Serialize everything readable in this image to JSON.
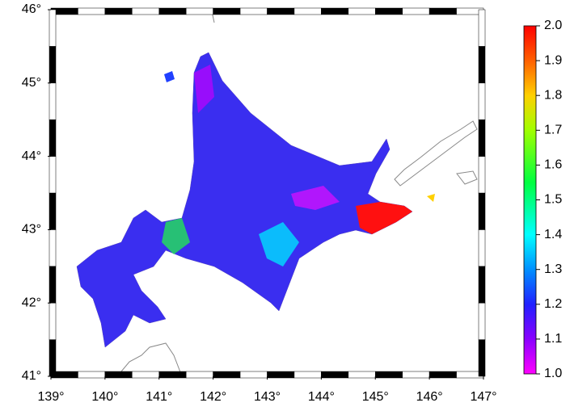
{
  "map": {
    "xlim": [
      139,
      147
    ],
    "ylim": [
      41,
      46
    ],
    "xticks": [
      {
        "value": 139,
        "label": "139°"
      },
      {
        "value": 140,
        "label": "140°"
      },
      {
        "value": 141,
        "label": "141°"
      },
      {
        "value": 142,
        "label": "142°"
      },
      {
        "value": 143,
        "label": "143°"
      },
      {
        "value": 144,
        "label": "144°"
      },
      {
        "value": 145,
        "label": "145°"
      },
      {
        "value": 146,
        "label": "146°"
      },
      {
        "value": 147,
        "label": "147°"
      }
    ],
    "yticks": [
      {
        "value": 41,
        "label": "41°"
      },
      {
        "value": 42,
        "label": "42°"
      },
      {
        "value": 43,
        "label": "43°"
      },
      {
        "value": 44,
        "label": "44°"
      },
      {
        "value": 45,
        "label": "45°"
      },
      {
        "value": 46,
        "label": "46°"
      }
    ],
    "colorbar": {
      "lim": [
        1.0,
        2.0
      ],
      "ticks": [
        {
          "value": 1.0,
          "label": "1.0"
        },
        1.1,
        1.2,
        1.3,
        1.4,
        1.5,
        1.6,
        1.7,
        1.8,
        1.9,
        {
          "value": 2.0,
          "label": "2.0"
        }
      ],
      "colormap": [
        {
          "value": 1.0,
          "color": "#ff00ff"
        },
        {
          "value": 1.1,
          "color": "#8a00ff"
        },
        {
          "value": 1.2,
          "color": "#2020ff"
        },
        {
          "value": 1.3,
          "color": "#0090ff"
        },
        {
          "value": 1.4,
          "color": "#00ffff"
        },
        {
          "value": 1.55,
          "color": "#00ff40"
        },
        {
          "value": 1.7,
          "color": "#a0ff00"
        },
        {
          "value": 1.8,
          "color": "#ffd000"
        },
        {
          "value": 1.9,
          "color": "#ff6000"
        },
        {
          "value": 2.0,
          "color": "#ff0000"
        }
      ]
    }
  }
}
